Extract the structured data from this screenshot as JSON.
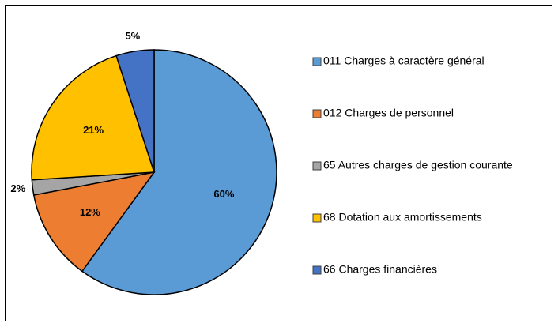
{
  "chart_data": {
    "type": "pie",
    "categories": [
      "011 Charges à caractère général",
      "012 Charges de personnel",
      "65 Autres charges de gestion courante",
      "68 Dotation aux amortissements",
      "66 Charges financières"
    ],
    "values": [
      60,
      12,
      2,
      21,
      5
    ],
    "value_labels": [
      "60%",
      "12%",
      "2%",
      "21%",
      "5%"
    ],
    "colors": [
      "#5b9bd5",
      "#ed7d31",
      "#a5a5a5",
      "#ffc000",
      "#4472c4"
    ],
    "legend": "right"
  }
}
